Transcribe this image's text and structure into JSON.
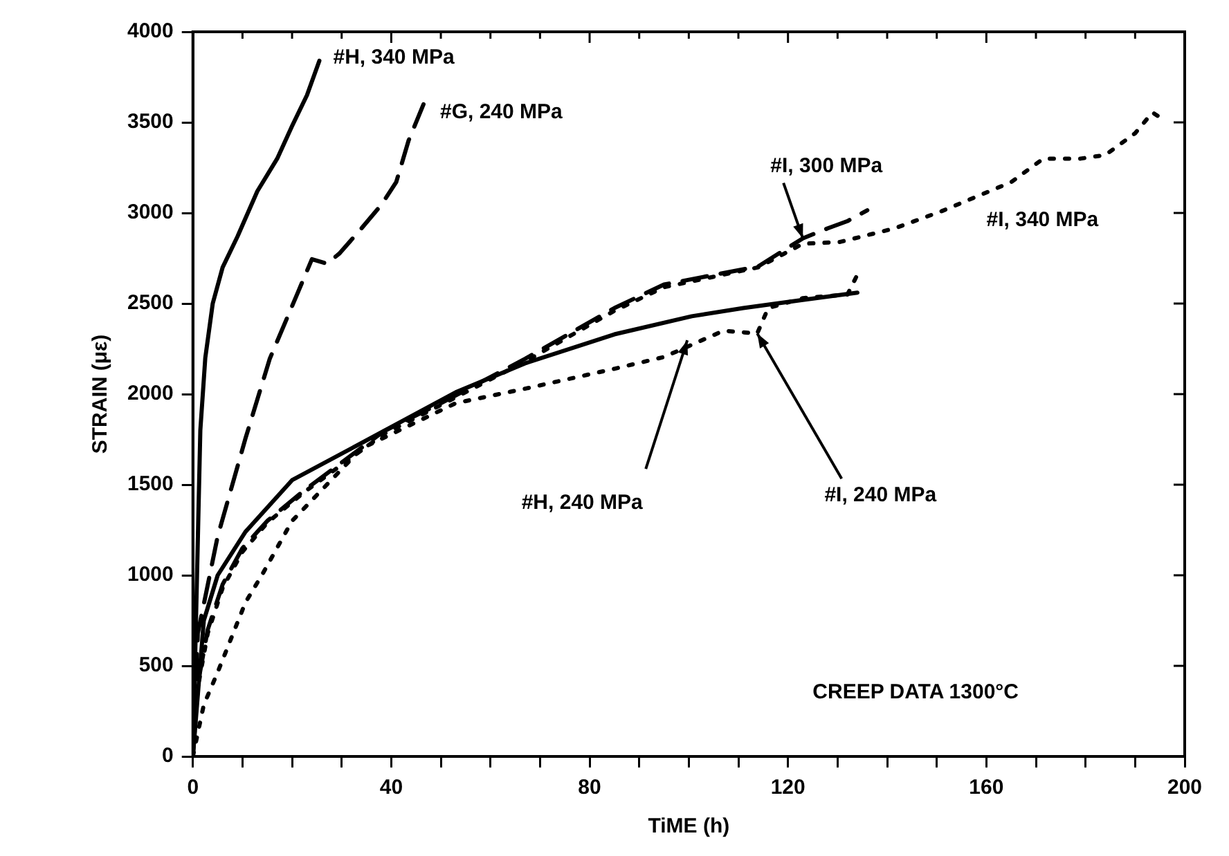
{
  "chart_data": {
    "type": "line",
    "xlabel": "TiME (h)",
    "ylabel": "STRAIN (με)",
    "xlim": [
      0,
      200
    ],
    "xticks": [
      0,
      {
        "value": 10,
        "label": null
      },
      {
        "value": 20,
        "label": null
      },
      {
        "value": 30,
        "label": null
      },
      40,
      {
        "value": 50,
        "label": null
      },
      {
        "value": 60,
        "label": null
      },
      {
        "value": 70,
        "label": null
      },
      80,
      {
        "value": 90,
        "label": null
      },
      {
        "value": 100,
        "label": null
      },
      {
        "value": 110,
        "label": null
      },
      120,
      {
        "value": 130,
        "label": null
      },
      {
        "value": 140,
        "label": null
      },
      {
        "value": 150,
        "label": null
      },
      160,
      {
        "value": 170,
        "label": null
      },
      {
        "value": 180,
        "label": null
      },
      {
        "value": 190,
        "label": null
      },
      200
    ],
    "ylim": [
      0,
      4000
    ],
    "yticks": [
      0,
      500,
      1000,
      1500,
      2000,
      2500,
      3000,
      3500,
      4000
    ],
    "grid": false,
    "legend": false,
    "marker": "none",
    "series": [
      {
        "color": "#000000",
        "line_style": "solid",
        "x": [
          0,
          0.5,
          1,
          1.5,
          2.5,
          4,
          6,
          9,
          13,
          17,
          20,
          23,
          25.5
        ],
        "values": [
          0,
          600,
          1200,
          1800,
          2200,
          2500,
          2700,
          2870,
          3120,
          3300,
          3480,
          3650,
          3840
        ]
      },
      {
        "color": "#000000",
        "line_style": "dashed",
        "x": [
          0,
          1,
          5,
          10.6,
          15.5,
          21,
          24,
          27,
          29.5,
          34,
          38,
          41,
          43.5,
          46.5
        ],
        "values": [
          0,
          680,
          1215,
          1755,
          2195,
          2550,
          2745,
          2720,
          2775,
          2915,
          3045,
          3170,
          3400,
          3600
        ]
      },
      {
        "color": "#000000",
        "line_style": "dashed",
        "x": [
          0,
          1,
          3,
          6,
          10,
          15,
          22.5,
          38.5,
          50,
          67,
          85,
          95,
          114,
          123,
          128,
          132,
          136
        ],
        "values": [
          0,
          400,
          700,
          950,
          1150,
          1300,
          1470,
          1795,
          1950,
          2195,
          2475,
          2605,
          2705,
          2860,
          2915,
          2955,
          3015
        ]
      },
      {
        "color": "#000000",
        "line_style": "dotted",
        "x": [
          0,
          1,
          3,
          6,
          10,
          15,
          22.5,
          38.5,
          50,
          67,
          85,
          95,
          114,
          123,
          130.5,
          141.5,
          151,
          165,
          171.5,
          179,
          184,
          190,
          193.5,
          196
        ],
        "values": [
          0,
          380,
          680,
          930,
          1130,
          1290,
          1460,
          1780,
          1940,
          2180,
          2460,
          2590,
          2700,
          2830,
          2840,
          2915,
          3010,
          3170,
          3300,
          3300,
          3320,
          3440,
          3555,
          3510
        ]
      },
      {
        "color": "#000000",
        "line_style": "solid",
        "x": [
          0,
          2.2,
          5,
          10.6,
          20,
          34,
          53,
          67,
          85,
          100.6,
          111,
          123,
          134
        ],
        "values": [
          0,
          750,
          1000,
          1240,
          1525,
          1730,
          2010,
          2170,
          2330,
          2430,
          2475,
          2520,
          2560
        ]
      },
      {
        "color": "#000000",
        "line_style": "dotted",
        "x": [
          0,
          2.2,
          5,
          10.6,
          14,
          20,
          34,
          53,
          67,
          85,
          95,
          107,
          113.8,
          116,
          123,
          132,
          134
        ],
        "values": [
          0,
          285,
          465,
          850,
          1005,
          1300,
          1700,
          1950,
          2030,
          2140,
          2205,
          2350,
          2335,
          2475,
          2530,
          2550,
          2660
        ]
      }
    ],
    "annotations": [
      {
        "text": "#H, 340 MPa",
        "x": 25.5,
        "y": 3840
      },
      {
        "text": "#G, 240 MPa",
        "x": 46.5,
        "y": 3600
      },
      {
        "text": "#I, 300 MPa",
        "x": 123,
        "y": 2860
      },
      {
        "text": "#I, 340 MPa",
        "x": 155,
        "y": 3050
      },
      {
        "text": "#H, 240 MPa",
        "x": 99.7,
        "y": 2297
      },
      {
        "text": "#I, 240 MPa",
        "x": 113.8,
        "y": 2335
      },
      "CREEP DATA 1300°C"
    ]
  }
}
